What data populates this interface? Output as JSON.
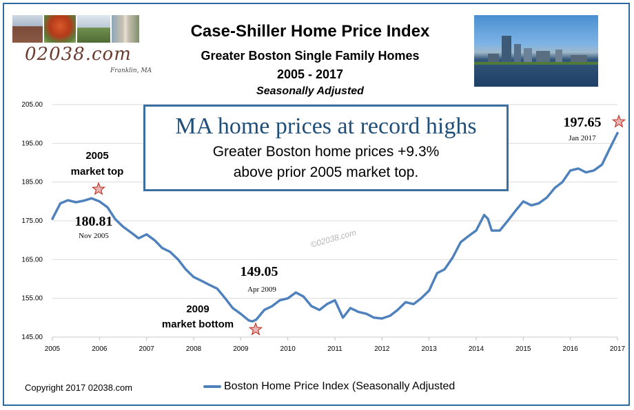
{
  "header": {
    "title": "Case-Shiller Home Price Index",
    "subtitle": "Greater Boston Single Family Homes",
    "years": "2005 - 2017",
    "adjustment": "Seasonally Adjusted",
    "brand": "02038.com",
    "brand_sub": "Franklin, MA"
  },
  "callout": {
    "headline": "MA home prices at record highs",
    "line1": "Greater Boston home prices +9.3%",
    "line2": "above prior 2005 market top."
  },
  "annotations": {
    "top_label_1": "2005",
    "top_label_2": "market top",
    "top_value": "180.81",
    "top_date": "Nov 2005",
    "bottom_value": "149.05",
    "bottom_date": "Apr 2009",
    "bottom_label_1": "2009",
    "bottom_label_2": "market bottom",
    "latest_value": "197.65",
    "latest_date": "Jan 2017",
    "watermark": "©02038.com"
  },
  "footer": {
    "copyright": "Copyright 2017 02038.com",
    "legend": "Boston Home Price Index (Seasonally Adjusted"
  },
  "colors": {
    "line": "#4f81bd",
    "frame": "#2c6a9e",
    "star": "#c0392b",
    "callout_heading": "#1f4e79"
  },
  "chart_data": {
    "type": "line",
    "title": "Case-Shiller Home Price Index",
    "xlabel": "",
    "ylabel": "",
    "xlim": [
      2005,
      2017
    ],
    "ylim": [
      145,
      205
    ],
    "yticks": [
      "145.00",
      "155.00",
      "165.00",
      "175.00",
      "185.00",
      "195.00",
      "205.00"
    ],
    "xticks": [
      "2005",
      "2006",
      "2007",
      "2008",
      "2009",
      "2010",
      "2011",
      "2012",
      "2013",
      "2014",
      "2015",
      "2016",
      "2017"
    ],
    "grid": "horizontal",
    "legend_position": "bottom",
    "series": [
      {
        "name": "Boston Home Price Index (Seasonally Adjusted",
        "x": [
          2005.0,
          2005.17,
          2005.33,
          2005.5,
          2005.67,
          2005.83,
          2006.0,
          2006.17,
          2006.33,
          2006.5,
          2006.67,
          2006.83,
          2007.0,
          2007.17,
          2007.33,
          2007.5,
          2007.67,
          2007.83,
          2008.0,
          2008.17,
          2008.33,
          2008.5,
          2008.67,
          2008.83,
          2009.0,
          2009.17,
          2009.25,
          2009.33,
          2009.5,
          2009.67,
          2009.83,
          2010.0,
          2010.17,
          2010.33,
          2010.5,
          2010.67,
          2010.83,
          2011.0,
          2011.17,
          2011.33,
          2011.5,
          2011.67,
          2011.83,
          2012.0,
          2012.17,
          2012.33,
          2012.5,
          2012.67,
          2012.83,
          2013.0,
          2013.17,
          2013.33,
          2013.5,
          2013.67,
          2013.83,
          2014.0,
          2014.17,
          2014.25,
          2014.33,
          2014.5,
          2014.67,
          2014.83,
          2015.0,
          2015.17,
          2015.33,
          2015.5,
          2015.67,
          2015.83,
          2016.0,
          2016.17,
          2016.33,
          2016.5,
          2016.67,
          2016.83,
          2017.0
        ],
        "values": [
          175.5,
          179.5,
          180.3,
          179.8,
          180.2,
          180.81,
          180.0,
          178.5,
          175.5,
          173.5,
          172.0,
          170.5,
          171.5,
          170.0,
          168.0,
          167.0,
          165.0,
          162.5,
          160.5,
          159.5,
          158.5,
          157.5,
          155.0,
          152.5,
          151.0,
          149.3,
          149.05,
          149.5,
          152.0,
          153.0,
          154.5,
          155.0,
          156.5,
          155.5,
          153.0,
          152.0,
          153.5,
          154.5,
          150.0,
          152.5,
          151.5,
          151.0,
          150.0,
          149.8,
          150.5,
          152.0,
          154.0,
          153.5,
          155.0,
          157.0,
          161.5,
          162.5,
          165.5,
          169.5,
          171.0,
          172.5,
          176.5,
          175.5,
          172.5,
          172.5,
          175.0,
          177.5,
          180.0,
          179.0,
          179.5,
          181.0,
          183.5,
          185.0,
          188.0,
          188.5,
          187.5,
          188.0,
          189.5,
          193.5,
          197.65
        ]
      }
    ]
  }
}
